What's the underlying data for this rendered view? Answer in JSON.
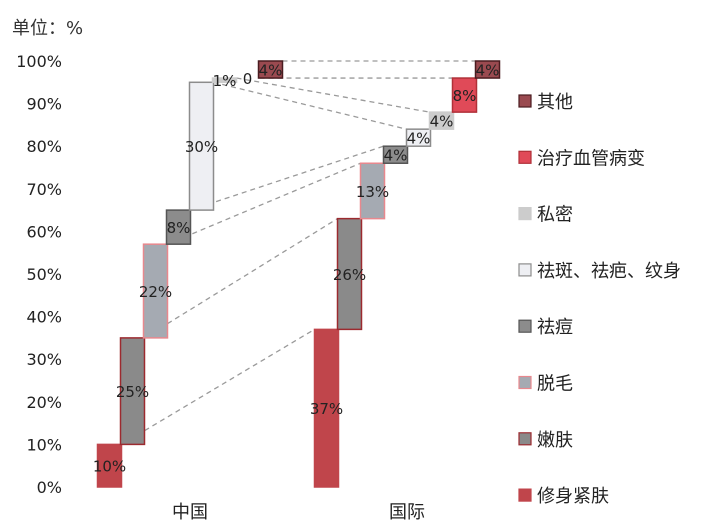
{
  "unit_label": "单位：%",
  "chart_data": {
    "type": "bar",
    "subtype": "stacked-waterfall",
    "categories": [
      "中国",
      "国际"
    ],
    "ylim": [
      0,
      100
    ],
    "yticks": [
      "0%",
      "10%",
      "20%",
      "30%",
      "40%",
      "50%",
      "60%",
      "70%",
      "80%",
      "90%",
      "100%"
    ],
    "legend_position": "right",
    "series": [
      {
        "name": "修身紧肤",
        "values": [
          10,
          37
        ],
        "labels": [
          "10%",
          "37%"
        ],
        "fill": "#c0454b",
        "stroke": "#c0454b"
      },
      {
        "name": "嫩肤",
        "values": [
          25,
          26
        ],
        "labels": [
          "25%",
          "26%"
        ],
        "fill": "#8a8a8a",
        "stroke": "#9c2a2f"
      },
      {
        "name": "脱毛",
        "values": [
          22,
          13
        ],
        "labels": [
          "22%",
          "13%"
        ],
        "fill": "#a5aab2",
        "stroke": "#e8888e"
      },
      {
        "name": "祛痘",
        "values": [
          8,
          4
        ],
        "labels": [
          "8%",
          "4%"
        ],
        "fill": "#8c8c8c",
        "stroke": "#555555"
      },
      {
        "name": "祛斑、祛疤、纹身",
        "values": [
          30,
          4
        ],
        "labels": [
          "30%",
          "4%"
        ],
        "fill": "#eeeff3",
        "stroke": "#8c8c8c"
      },
      {
        "name": "私密",
        "values": [
          1,
          4
        ],
        "labels": [
          "1%",
          "4%"
        ],
        "fill": "#cccccc",
        "stroke": "#cccccc"
      },
      {
        "name": "治疗血管病变",
        "values": [
          0,
          8
        ],
        "labels": [
          "0",
          "8%"
        ],
        "fill": "#e04a58",
        "stroke": "#b03038"
      },
      {
        "name": "其他",
        "values": [
          4,
          4
        ],
        "labels": [
          "4%",
          "4%"
        ],
        "fill": "#9a4a50",
        "stroke": "#4a1c20"
      }
    ],
    "legend_order": [
      "其他",
      "治疗血管病变",
      "私密",
      "祛斑、祛疤、纹身",
      "祛痘",
      "脱毛",
      "嫩肤",
      "修身紧肤"
    ]
  }
}
